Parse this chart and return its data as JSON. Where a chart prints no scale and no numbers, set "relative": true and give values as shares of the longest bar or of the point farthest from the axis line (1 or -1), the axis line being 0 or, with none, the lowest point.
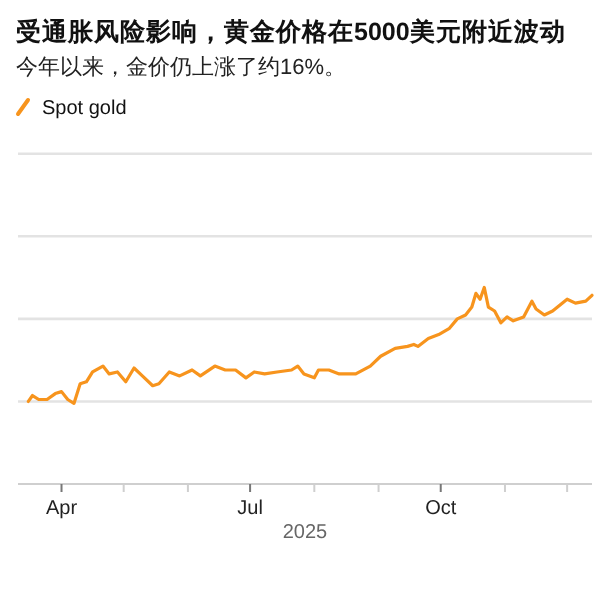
{
  "chart_data": {
    "type": "line",
    "title": "受通胀风险影响，黄金价格在5000美元附近波动",
    "subtitle": "今年以来，金价仍上涨了约16%。",
    "xlabel": "2025",
    "relative": true,
    "legend": "top left",
    "marker": "none",
    "line_style": "solid",
    "ref_lines": [
      {
        "axis": "y",
        "value": 0.42,
        "color": "#e3e3e3"
      },
      {
        "axis": "y",
        "value": 0.84,
        "color": "#e3e3e3"
      },
      {
        "axis": "y",
        "value": 1.26,
        "color": "#e3e3e3"
      },
      {
        "axis": "y",
        "value": 1.68,
        "color": "#e3e3e3"
      }
    ],
    "xlim": [
      "2025-03-11",
      "2025-12-13"
    ],
    "xticks": [
      {
        "value": "2025-04-01",
        "label": "Apr"
      },
      {
        "value": "2025-05-01",
        "label": null
      },
      {
        "value": "2025-06-01",
        "label": null
      },
      {
        "value": "2025-07-01",
        "label": "Jul"
      },
      {
        "value": "2025-08-01",
        "label": null
      },
      {
        "value": "2025-09-01",
        "label": null
      },
      {
        "value": "2025-10-01",
        "label": "Oct"
      },
      {
        "value": "2025-11-01",
        "label": null
      },
      {
        "value": "2025-12-01",
        "label": null
      }
    ],
    "series": [
      {
        "name": "Spot gold",
        "color": "#f7941d",
        "x": [
          "2025-03-16",
          "2025-03-18",
          "2025-03-21",
          "2025-03-25",
          "2025-03-29",
          "2025-04-01",
          "2025-04-04",
          "2025-04-07",
          "2025-04-10",
          "2025-04-13",
          "2025-04-16",
          "2025-04-21",
          "2025-04-24",
          "2025-04-28",
          "2025-05-02",
          "2025-05-06",
          "2025-05-10",
          "2025-05-15",
          "2025-05-18",
          "2025-05-23",
          "2025-05-28",
          "2025-06-03",
          "2025-06-07",
          "2025-06-14",
          "2025-06-19",
          "2025-06-24",
          "2025-06-29",
          "2025-07-03",
          "2025-07-08",
          "2025-07-14",
          "2025-07-21",
          "2025-07-24",
          "2025-07-27",
          "2025-08-01",
          "2025-08-03",
          "2025-08-08",
          "2025-08-13",
          "2025-08-21",
          "2025-08-28",
          "2025-09-02",
          "2025-09-09",
          "2025-09-15",
          "2025-09-18",
          "2025-09-20",
          "2025-09-25",
          "2025-09-30",
          "2025-10-05",
          "2025-10-09",
          "2025-10-13",
          "2025-10-16",
          "2025-10-18",
          "2025-10-20",
          "2025-10-22",
          "2025-10-24",
          "2025-10-27",
          "2025-10-30",
          "2025-11-02",
          "2025-11-05",
          "2025-11-10",
          "2025-11-14",
          "2025-11-16",
          "2025-11-20",
          "2025-11-24",
          "2025-12-01",
          "2025-12-05",
          "2025-12-10",
          "2025-12-13"
        ],
        "values": [
          0.42,
          0.45,
          0.43,
          0.43,
          0.46,
          0.47,
          0.43,
          0.41,
          0.51,
          0.52,
          0.57,
          0.6,
          0.56,
          0.57,
          0.52,
          0.59,
          0.55,
          0.5,
          0.51,
          0.57,
          0.55,
          0.58,
          0.55,
          0.6,
          0.58,
          0.58,
          0.54,
          0.57,
          0.56,
          0.57,
          0.58,
          0.6,
          0.56,
          0.54,
          0.58,
          0.58,
          0.56,
          0.56,
          0.6,
          0.65,
          0.69,
          0.7,
          0.71,
          0.7,
          0.74,
          0.76,
          0.79,
          0.84,
          0.86,
          0.9,
          0.97,
          0.94,
          1.0,
          0.9,
          0.88,
          0.82,
          0.85,
          0.83,
          0.85,
          0.93,
          0.89,
          0.86,
          0.88,
          0.94,
          0.92,
          0.93,
          0.96
        ]
      }
    ]
  }
}
